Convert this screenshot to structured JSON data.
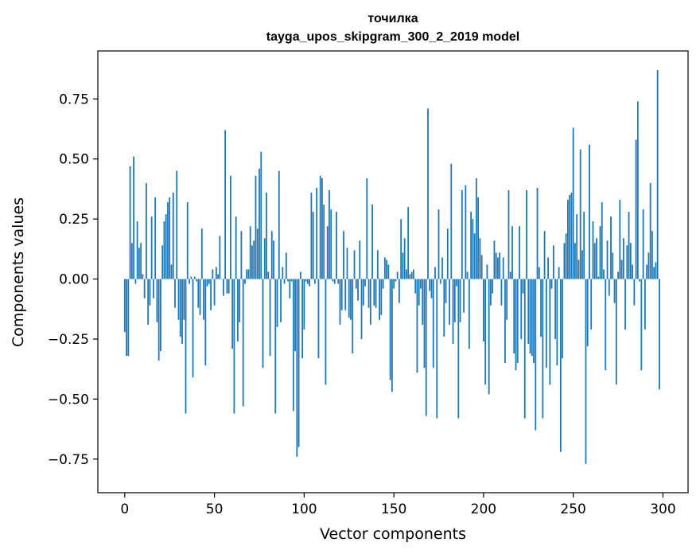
{
  "chart_data": {
    "type": "bar",
    "title": "точилка",
    "subtitle": "tayga_upos_skipgram_300_2_2019 model",
    "xlabel": "Vector components",
    "ylabel": "Components values",
    "xlim": [
      -15,
      314
    ],
    "ylim": [
      -0.89,
      0.95
    ],
    "xticks": [
      0,
      50,
      100,
      150,
      200,
      250,
      300
    ],
    "xtick_labels": [
      "0",
      "50",
      "100",
      "150",
      "200",
      "250",
      "300"
    ],
    "yticks": [
      -0.75,
      -0.5,
      -0.25,
      0.0,
      0.25,
      0.5,
      0.75
    ],
    "ytick_labels": [
      "−0.75",
      "−0.50",
      "−0.25",
      "0.00",
      "0.25",
      "0.50",
      "0.75"
    ],
    "bar_color": "#1f77b4",
    "grid": false,
    "values": [
      -0.22,
      -0.32,
      -0.32,
      0.47,
      0.15,
      0.51,
      -0.02,
      0.24,
      0.13,
      0.15,
      0.02,
      -0.08,
      0.4,
      -0.19,
      -0.11,
      0.26,
      -0.08,
      0.34,
      -0.18,
      -0.34,
      -0.3,
      0.14,
      0.24,
      0.27,
      0.32,
      0.34,
      0.06,
      0.36,
      -0.12,
      0.45,
      -0.17,
      -0.24,
      -0.27,
      -0.17,
      -0.56,
      0.32,
      -0.02,
      0.01,
      -0.41,
      0.01,
      -0.01,
      -0.12,
      -0.15,
      0.21,
      -0.17,
      -0.36,
      -0.03,
      -0.02,
      -0.13,
      0.04,
      -0.11,
      0.05,
      0.02,
      0.18,
      0.0,
      -0.07,
      0.62,
      -0.06,
      -0.06,
      0.43,
      -0.29,
      -0.56,
      0.26,
      -0.26,
      -0.18,
      0.2,
      -0.53,
      -0.02,
      0.04,
      0.04,
      0.22,
      0.14,
      0.16,
      0.43,
      0.21,
      0.46,
      0.53,
      -0.37,
      0.17,
      0.36,
      0.03,
      -0.32,
      0.2,
      0.16,
      -0.56,
      -0.2,
      0.45,
      -0.18,
      0.05,
      -0.02,
      0.11,
      -0.01,
      -0.08,
      -0.01,
      -0.55,
      -0.3,
      -0.74,
      -0.7,
      0.03,
      -0.33,
      -0.21,
      -0.01,
      -0.02,
      -0.03,
      0.36,
      0.28,
      -0.02,
      0.38,
      -0.33,
      0.43,
      0.42,
      0.31,
      -0.44,
      0.22,
      0.37,
      0.29,
      -0.01,
      -0.02,
      0.28,
      -0.02,
      -0.19,
      -0.13,
      0.2,
      -0.13,
      0.13,
      -0.16,
      -0.17,
      -0.31,
      0.12,
      -0.04,
      -0.09,
      0.16,
      -0.25,
      -0.11,
      -0.03,
      0.42,
      -0.12,
      -0.19,
      0.31,
      -0.11,
      -0.12,
      0.12,
      -0.17,
      -0.15,
      -0.04,
      0.09,
      0.08,
      0.06,
      -0.42,
      -0.47,
      -0.04,
      -0.01,
      0.03,
      -0.1,
      0.25,
      0.11,
      0.17,
      0.04,
      0.3,
      0.02,
      0.03,
      0.04,
      -0.06,
      -0.39,
      -0.11,
      -0.04,
      -0.19,
      -0.37,
      -0.57,
      0.71,
      -0.05,
      -0.08,
      -0.37,
      0.05,
      -0.58,
      0.29,
      -0.02,
      0.09,
      -0.24,
      -0.1,
      0.21,
      -0.19,
      0.48,
      -0.27,
      -0.18,
      -0.03,
      -0.58,
      -0.18,
      0.37,
      -0.14,
      0.39,
      0.03,
      -0.29,
      0.28,
      0.25,
      0.19,
      0.42,
      0.34,
      0.17,
      0.1,
      -0.26,
      -0.44,
      0.06,
      -0.48,
      -0.11,
      -0.06,
      0.16,
      0.11,
      0.09,
      0.11,
      -0.11,
      0.09,
      -0.35,
      -0.17,
      0.37,
      0.03,
      0.22,
      -0.31,
      -0.38,
      -0.35,
      0.22,
      -0.25,
      -0.06,
      -0.58,
      0.37,
      -0.27,
      -0.31,
      -0.32,
      -0.35,
      -0.63,
      0.38,
      0.05,
      -0.24,
      -0.58,
      0.2,
      -0.37,
      0.09,
      -0.44,
      -0.04,
      0.14,
      -0.25,
      -0.36,
      0.05,
      -0.72,
      -0.33,
      0.15,
      0.19,
      0.33,
      0.35,
      0.36,
      0.63,
      0.15,
      0.27,
      0.08,
      0.54,
      0.12,
      0.28,
      -0.77,
      -0.28,
      0.56,
      -0.21,
      0.24,
      0.15,
      0.17,
      0.01,
      0.22,
      0.32,
      0.04,
      -0.38,
      0.16,
      -0.07,
      0.26,
      0.11,
      -0.1,
      -0.44,
      0.03,
      0.33,
      0.08,
      0.17,
      -0.21,
      0.14,
      0.28,
      0.15,
      0.06,
      -0.11,
      0.58,
      0.74,
      -0.01,
      -0.38,
      0.29,
      -0.21,
      0.06,
      0.11,
      0.4,
      0.2,
      0.05,
      0.07,
      0.87,
      -0.46
    ]
  }
}
